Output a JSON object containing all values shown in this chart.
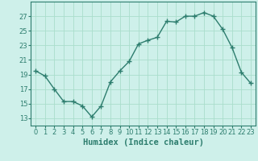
{
  "x": [
    0,
    1,
    2,
    3,
    4,
    5,
    6,
    7,
    8,
    9,
    10,
    11,
    12,
    13,
    14,
    15,
    16,
    17,
    18,
    19,
    20,
    21,
    22,
    23
  ],
  "y": [
    19.5,
    18.8,
    17.0,
    15.3,
    15.3,
    14.7,
    13.2,
    14.7,
    18.0,
    19.5,
    20.8,
    23.2,
    23.7,
    24.1,
    26.3,
    26.2,
    27.0,
    27.0,
    27.5,
    27.0,
    25.2,
    22.7,
    19.3,
    17.8
  ],
  "line_color": "#2d7d6e",
  "marker": "+",
  "marker_size": 4,
  "marker_linewidth": 1.0,
  "line_width": 1.0,
  "bg_color": "#cef0ea",
  "grid_color": "#aaddcc",
  "xlabel": "Humidex (Indice chaleur)",
  "xlabel_fontsize": 7.5,
  "tick_fontsize": 6,
  "tick_color": "#2d7d6e",
  "axis_label_color": "#2d7d6e",
  "ylim": [
    12,
    29
  ],
  "xlim": [
    -0.5,
    23.5
  ],
  "yticks": [
    13,
    15,
    17,
    19,
    21,
    23,
    25,
    27
  ],
  "xticks": [
    0,
    1,
    2,
    3,
    4,
    5,
    6,
    7,
    8,
    9,
    10,
    11,
    12,
    13,
    14,
    15,
    16,
    17,
    18,
    19,
    20,
    21,
    22,
    23
  ]
}
